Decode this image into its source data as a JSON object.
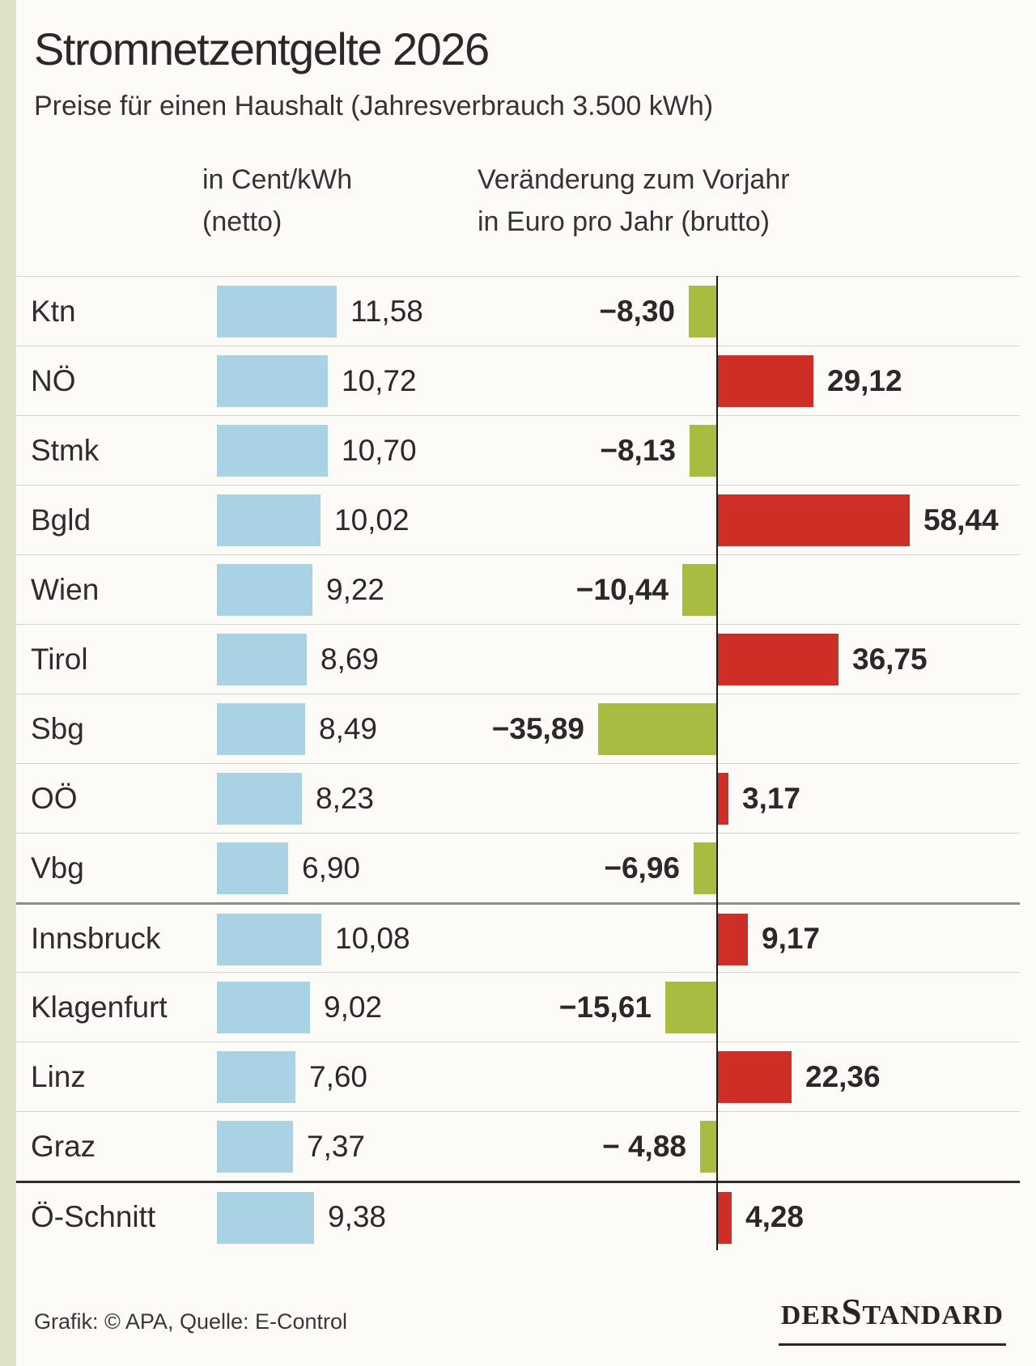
{
  "page": {
    "background": "#fcfbf7",
    "accent_strip_color": "#dfe2c8"
  },
  "header": {
    "title": "Stromnetzentgelte 2026",
    "subtitle": "Preise für einen Haushalt (Jahresverbrauch 3.500 kWh)"
  },
  "columns": {
    "left": {
      "line1": "in Cent/kWh",
      "line2": "(netto)"
    },
    "right": {
      "line1": "Veränderung zum Vorjahr",
      "line2": "in Euro pro Jahr (brutto)"
    }
  },
  "chart_data": {
    "type": "bar",
    "orientation": "horizontal",
    "title": "Stromnetzentgelte 2026",
    "subtitle": "Preise für einen Haushalt (Jahresverbrauch 3.500 kWh)",
    "categories": [
      "Ktn",
      "NÖ",
      "Stmk",
      "Bgld",
      "Wien",
      "Tirol",
      "Sbg",
      "OÖ",
      "Vbg",
      "Innsbruck",
      "Klagenfurt",
      "Linz",
      "Graz",
      "Ö-Schnitt"
    ],
    "series": [
      {
        "name": "in Cent/kWh (netto)",
        "values": [
          11.58,
          10.72,
          10.7,
          10.02,
          9.22,
          8.69,
          8.49,
          8.23,
          6.9,
          10.08,
          9.02,
          7.6,
          7.37,
          9.38
        ],
        "labels": [
          "11,58",
          "10,72",
          "10,70",
          "10,02",
          "9,22",
          "8,69",
          "8,49",
          "8,23",
          "6,90",
          "10,08",
          "9,02",
          "7,60",
          "7,37",
          "9,38"
        ],
        "color": "#a9d2e5"
      },
      {
        "name": "Veränderung zum Vorjahr in Euro pro Jahr (brutto)",
        "values": [
          -8.3,
          29.12,
          -8.13,
          58.44,
          -10.44,
          36.75,
          -35.89,
          3.17,
          -6.96,
          9.17,
          -15.61,
          22.36,
          -4.88,
          4.28
        ],
        "labels": [
          "−8,30",
          "29,12",
          "−8,13",
          "58,44",
          "−10,44",
          "36,75",
          "−35,89",
          "3,17",
          "−6,96",
          "9,17",
          "−15,61",
          "22,36",
          "− 4,88",
          "4,28"
        ],
        "positive_color": "#cd2e26",
        "negative_color": "#a8bc42"
      }
    ],
    "group_separators": {
      "medium_before_index": 9,
      "heavy_before_index": 13
    },
    "legend_position": "none",
    "grid": "row-dividers",
    "zero_axis": true
  },
  "footer": {
    "credit": "Grafik: © APA, Quelle: E-Control",
    "logo": {
      "part1": "DER",
      "part2": "S",
      "part3": "TANDARD"
    }
  }
}
